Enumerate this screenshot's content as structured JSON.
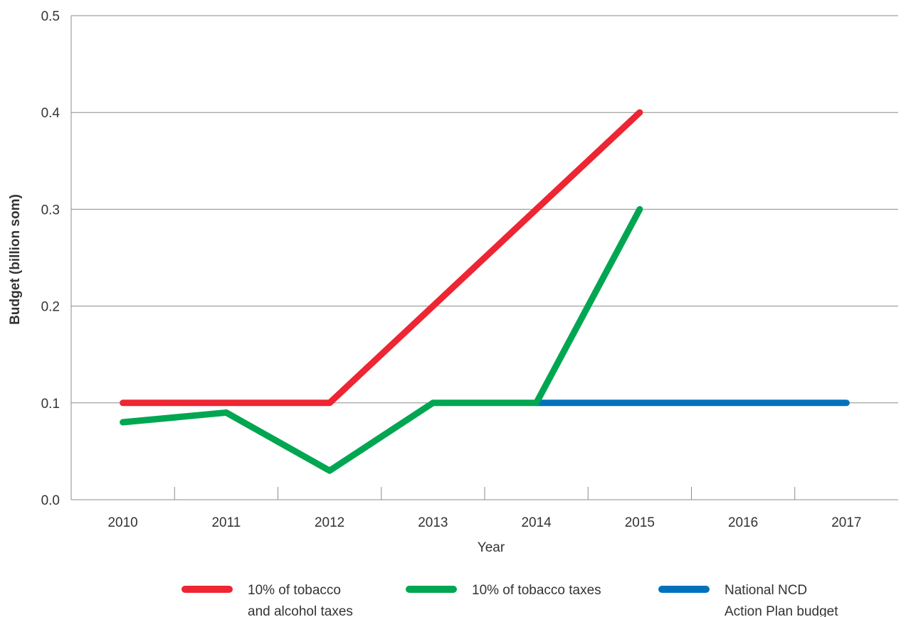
{
  "chart_data": {
    "type": "line",
    "title": "",
    "xlabel": "Year",
    "ylabel": "Budget (billion som)",
    "categories": [
      "2010",
      "2011",
      "2012",
      "2013",
      "2014",
      "2015",
      "2016",
      "2017"
    ],
    "y_ticks": [
      "0.0",
      "0.1",
      "0.2",
      "0.3",
      "0.4",
      "0.5"
    ],
    "ylim": [
      0,
      0.5
    ],
    "grid": "horizontal",
    "legend_position": "bottom",
    "series": [
      {
        "name": "10% of tobacco and alcohol taxes",
        "legend_lines": [
          "10% of tobacco",
          "and alcohol taxes"
        ],
        "color": "#ee2532",
        "x": [
          "2010",
          "2011",
          "2012",
          "2013",
          "2014",
          "2015"
        ],
        "values": [
          0.1,
          0.1,
          0.1,
          0.2,
          0.3,
          0.4
        ]
      },
      {
        "name": "10% of tobacco taxes",
        "legend_lines": [
          "10% of tobacco taxes"
        ],
        "color": "#00a651",
        "x": [
          "2010",
          "2011",
          "2012",
          "2013",
          "2014",
          "2015"
        ],
        "values": [
          0.08,
          0.09,
          0.03,
          0.1,
          0.1,
          0.3
        ]
      },
      {
        "name": "National NCD Action Plan budget",
        "legend_lines": [
          "National NCD",
          "Action Plan budget"
        ],
        "color": "#0072bc",
        "x": [
          "2014",
          "2015",
          "2016",
          "2017"
        ],
        "values": [
          0.1,
          0.1,
          0.1,
          0.1
        ]
      }
    ]
  }
}
